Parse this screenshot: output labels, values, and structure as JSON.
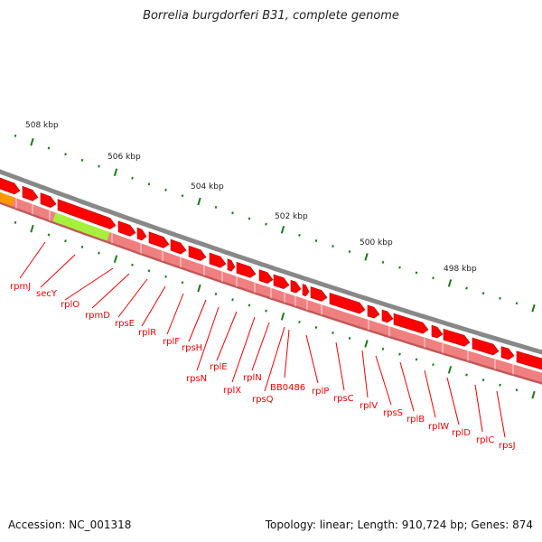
{
  "title": "Borrelia burgdorferi B31, complete genome",
  "footer": {
    "accession": "Accession: NC_001318",
    "topology": "Topology: linear; Length: 910,724 bp; Genes: 874"
  },
  "scale_labels": [
    "508 kbp",
    "506 kbp",
    "504 kbp",
    "502 kbp",
    "500 kbp",
    "498 kbp"
  ],
  "genes": [
    "rpmJ",
    "secY",
    "rplO",
    "rpmD",
    "rpsE",
    "rplR",
    "rplF",
    "rpsH",
    "rpsN",
    "rplE",
    "rplX",
    "rplN",
    "rpsQ",
    "BB0486",
    "rplP",
    "rpsC",
    "rplV",
    "rpsS",
    "rplB",
    "rplW",
    "rplD",
    "rplC",
    "rpsJ"
  ],
  "colors": {
    "gene": "#ff0000",
    "label": "#ee0000",
    "backbone": "#888888",
    "band": "#f08080",
    "orange": "#ff9900",
    "green": "#a6f03c",
    "tick": "#1a7a1a"
  }
}
